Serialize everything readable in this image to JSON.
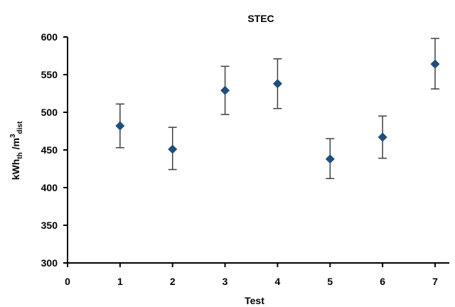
{
  "chart_data": {
    "type": "scatter",
    "title": "STEC",
    "xlabel": "Test",
    "ylabel": {
      "base": "kWh",
      "sub1": "th",
      "mid": " /m",
      "sup": "3",
      "sub2": "dist"
    },
    "xlim": [
      0,
      7
    ],
    "ylim": [
      300,
      600
    ],
    "xticks": [
      "0",
      "1",
      "2",
      "3",
      "4",
      "5",
      "6",
      "7"
    ],
    "yticks": [
      "300",
      "350",
      "400",
      "450",
      "500",
      "550",
      "600"
    ],
    "grid": false,
    "marker": "diamond",
    "marker_color": "#1f4e79",
    "errorbar_color": "#404040",
    "points": [
      {
        "x": 1,
        "y": 482,
        "err_low": 453,
        "err_high": 511
      },
      {
        "x": 2,
        "y": 451,
        "err_low": 424,
        "err_high": 480
      },
      {
        "x": 3,
        "y": 529,
        "err_low": 497,
        "err_high": 561
      },
      {
        "x": 4,
        "y": 538,
        "err_low": 505,
        "err_high": 571
      },
      {
        "x": 5,
        "y": 438,
        "err_low": 412,
        "err_high": 465
      },
      {
        "x": 6,
        "y": 467,
        "err_low": 439,
        "err_high": 495
      },
      {
        "x": 7,
        "y": 564,
        "err_low": 531,
        "err_high": 598
      }
    ]
  }
}
